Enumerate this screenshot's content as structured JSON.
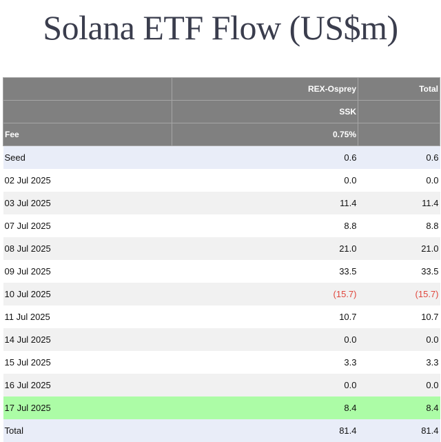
{
  "title": "Solana ETF Flow (US$m)",
  "chart_data": {
    "type": "table",
    "title": "Solana ETF Flow (US$m)",
    "columns": [
      "",
      "REX-Osprey",
      "Total"
    ],
    "subheader": [
      "",
      "SSK",
      ""
    ],
    "fee_row": {
      "label": "Fee",
      "values": [
        "0.75%",
        ""
      ]
    },
    "rows": [
      {
        "label": "Seed",
        "values": [
          "0.6",
          "0.6"
        ],
        "style": "seed"
      },
      {
        "label": "02 Jul 2025",
        "values": [
          "0.0",
          "0.0"
        ],
        "style": "odd"
      },
      {
        "label": "03 Jul 2025",
        "values": [
          "11.4",
          "11.4"
        ],
        "style": "even"
      },
      {
        "label": "07 Jul 2025",
        "values": [
          "8.8",
          "8.8"
        ],
        "style": "odd"
      },
      {
        "label": "08 Jul 2025",
        "values": [
          "21.0",
          "21.0"
        ],
        "style": "even"
      },
      {
        "label": "09 Jul 2025",
        "values": [
          "33.5",
          "33.5"
        ],
        "style": "odd"
      },
      {
        "label": "10 Jul 2025",
        "values": [
          "(15.7)",
          "(15.7)"
        ],
        "style": "even"
      },
      {
        "label": "11 Jul 2025",
        "values": [
          "10.7",
          "10.7"
        ],
        "style": "odd"
      },
      {
        "label": "14 Jul 2025",
        "values": [
          "0.0",
          "0.0"
        ],
        "style": "even"
      },
      {
        "label": "15 Jul 2025",
        "values": [
          "3.3",
          "3.3"
        ],
        "style": "odd"
      },
      {
        "label": "16 Jul 2025",
        "values": [
          "0.0",
          "0.0"
        ],
        "style": "even"
      },
      {
        "label": "17 Jul 2025",
        "values": [
          "8.4",
          "8.4"
        ],
        "style": "highlight"
      },
      {
        "label": "Total",
        "values": [
          "81.4",
          "81.4"
        ],
        "style": "total"
      }
    ],
    "colors": {
      "header_bg": "#808080",
      "seed_total_bg": "#e9edf8",
      "stripe_bg": "#f1f1f1",
      "highlight_bg": "#acfca6",
      "negative_text": "#e0463c"
    }
  }
}
